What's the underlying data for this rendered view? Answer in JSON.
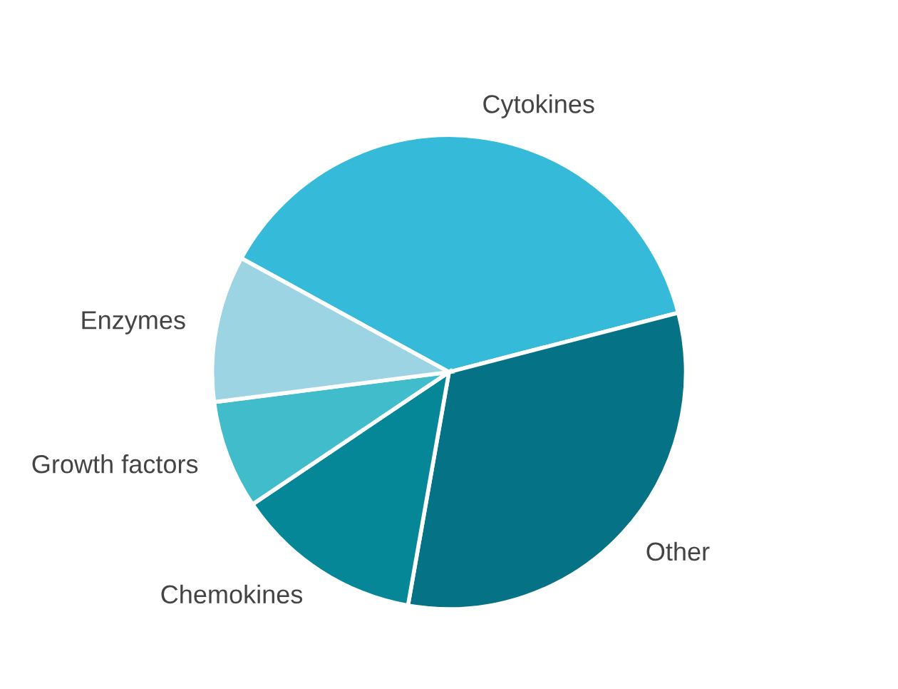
{
  "chart_data": {
    "type": "pie",
    "categories": [
      "Cytokines",
      "Other",
      "Chemokines",
      "Growth factors",
      "Enzymes"
    ],
    "values": [
      38,
      31.8,
      12.8,
      7.4,
      10
    ],
    "colors": [
      "#35bad9",
      "#057385",
      "#058797",
      "#40bccb",
      "#9cd4e3"
    ]
  }
}
